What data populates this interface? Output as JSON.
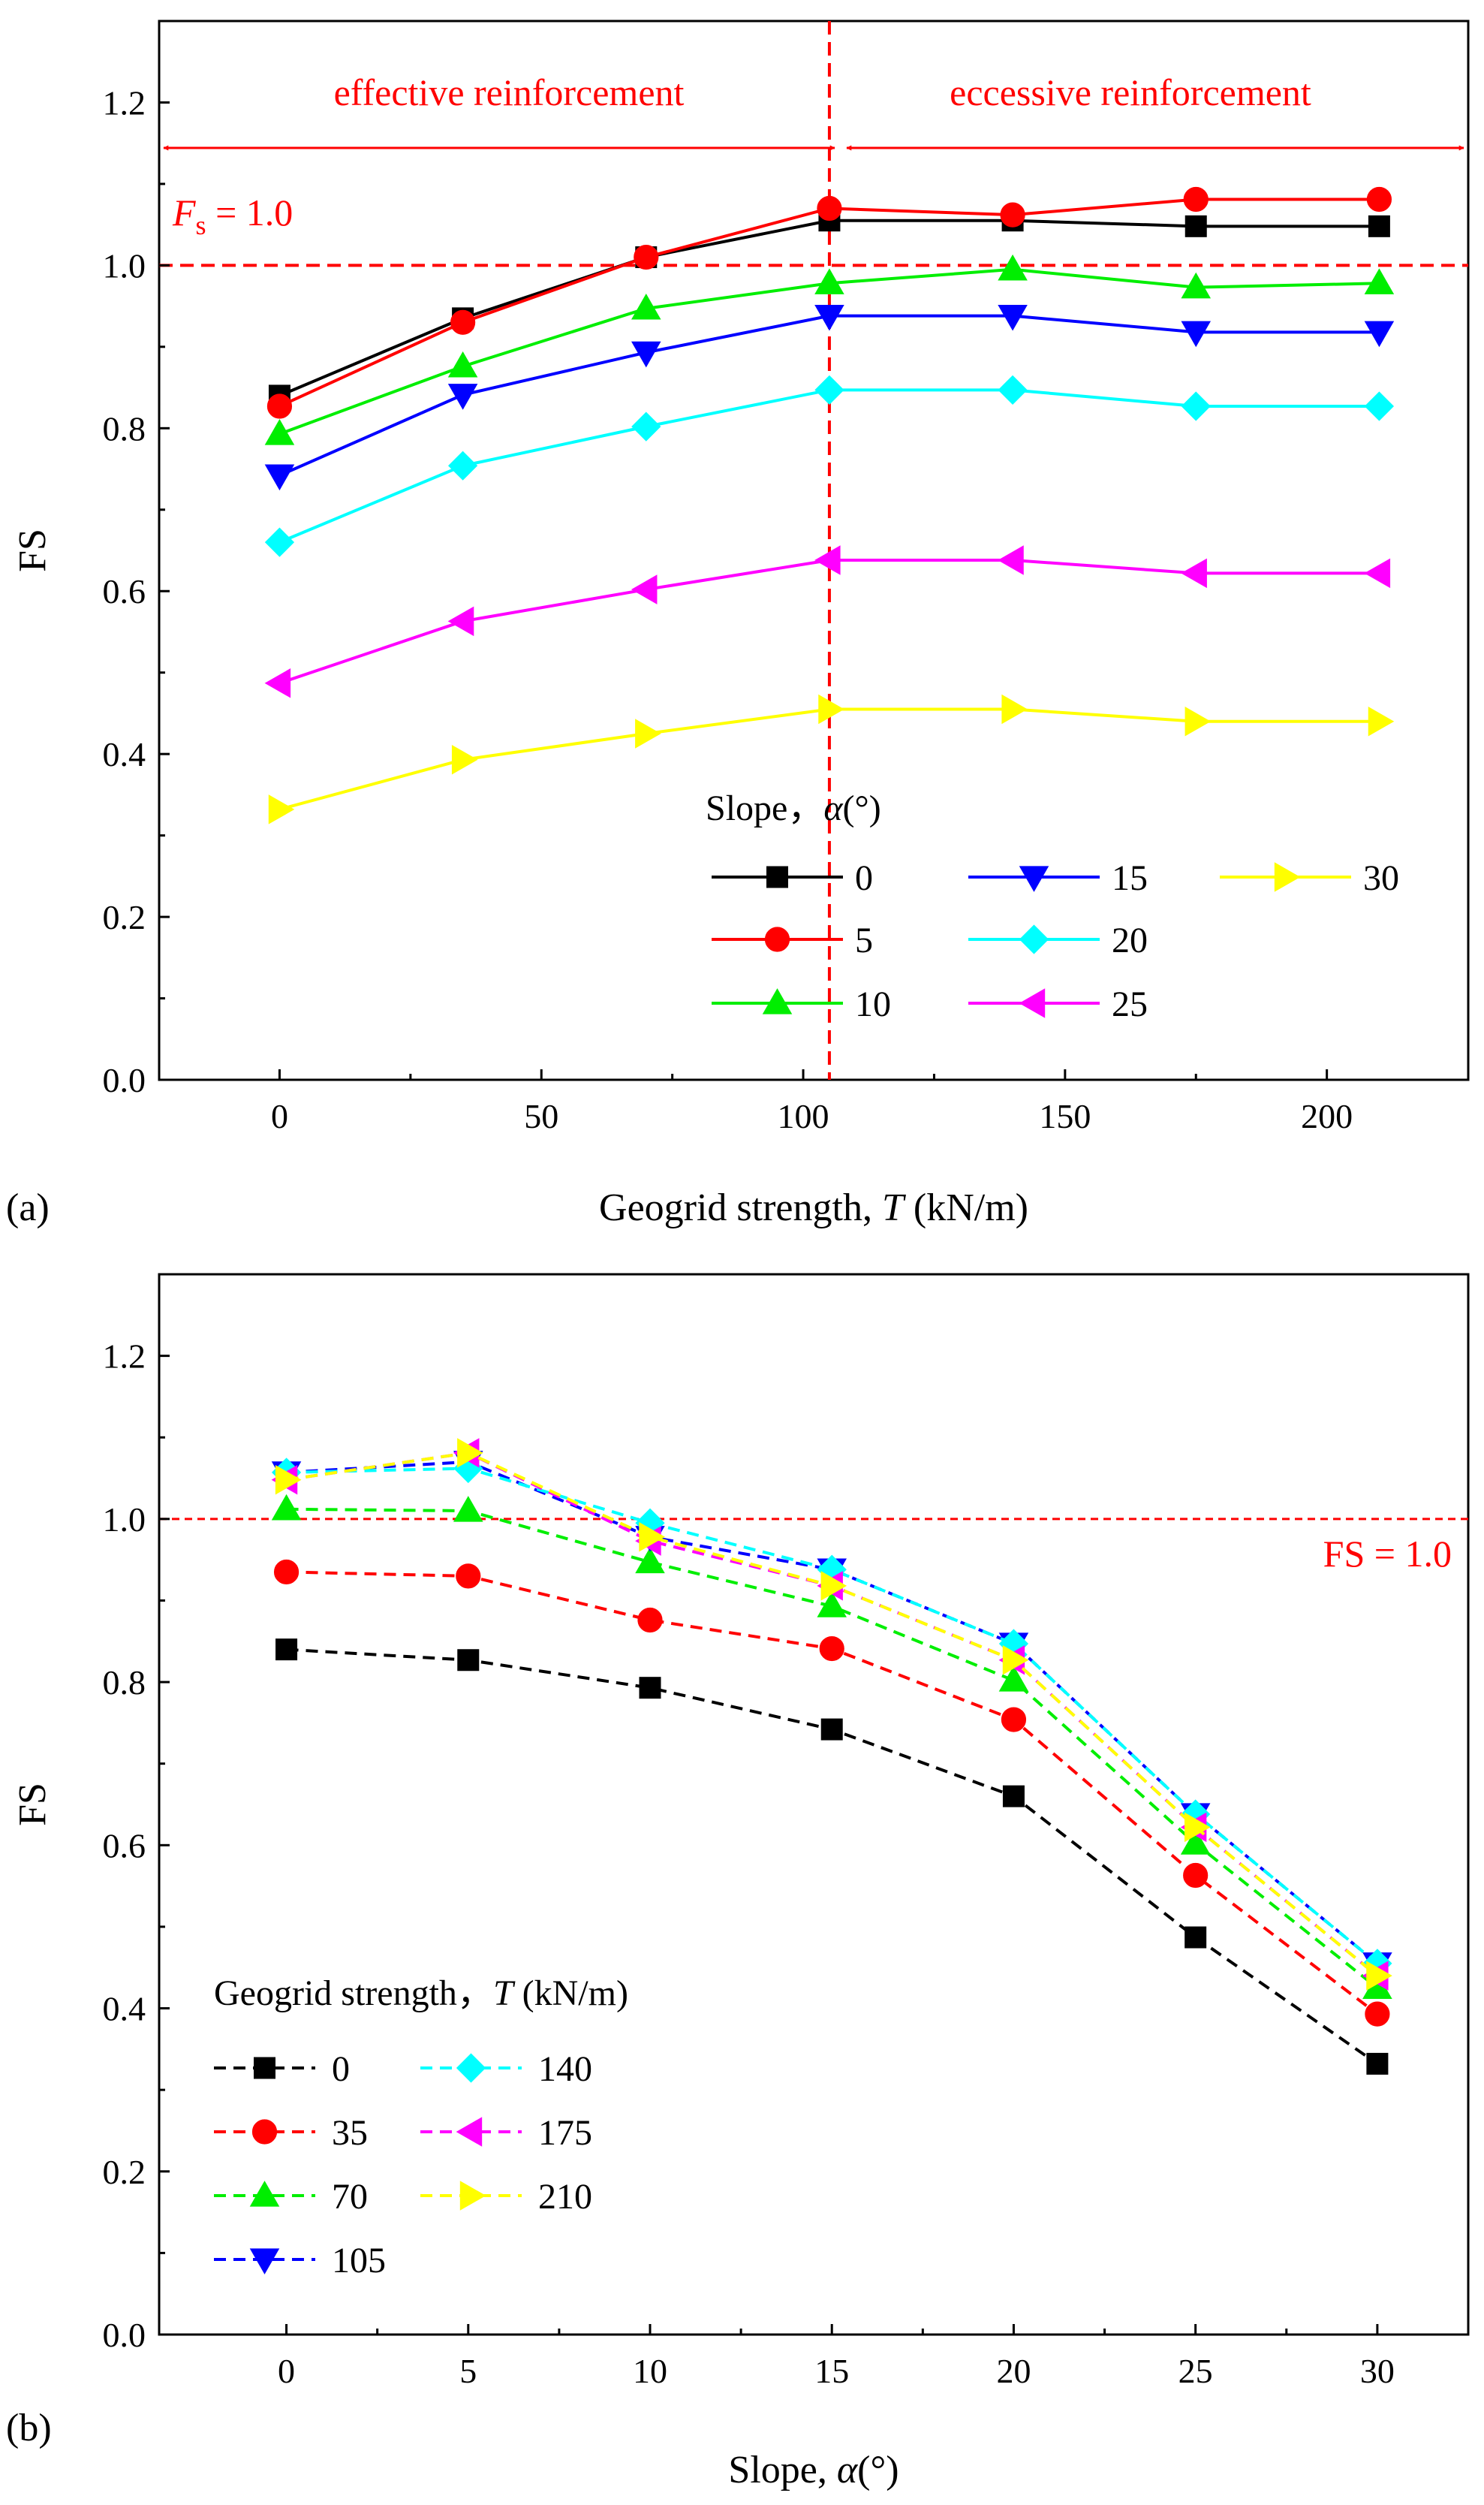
{
  "chart_data": [
    {
      "type": "line",
      "panel_label": "(a)",
      "title": "",
      "xlabel": "Geogrid strength, T (kN/m)",
      "xlabel_parts": [
        "Geogrid strength, ",
        "T",
        " (kN/m)"
      ],
      "ylabel": "FS",
      "xlim": [
        -23,
        227
      ],
      "ylim": [
        0.0,
        1.3
      ],
      "x_ticks": [
        0,
        50,
        100,
        150,
        200
      ],
      "y_ticks": [
        0.0,
        0.2,
        0.4,
        0.6,
        0.8,
        1.0,
        1.2
      ],
      "x_tick_labels": [
        "0",
        "50",
        "100",
        "150",
        "200"
      ],
      "y_tick_labels": [
        "0.0",
        "0.2",
        "0.4",
        "0.6",
        "0.8",
        "1.0",
        "1.2"
      ],
      "grid": false,
      "x": [
        0,
        35,
        70,
        105,
        140,
        175,
        210
      ],
      "legend_title": "Slope，α(°)",
      "legend_title_parts": [
        "Slope，",
        "α",
        "(°)"
      ],
      "legend_position": "bottom-right",
      "series": [
        {
          "name": "0",
          "color": "#000000",
          "marker": "square",
          "values": [
            0.84,
            0.935,
            1.01,
            1.055,
            1.055,
            1.048,
            1.048
          ]
        },
        {
          "name": "5",
          "color": "#ff0000",
          "marker": "circle",
          "values": [
            0.827,
            0.93,
            1.01,
            1.07,
            1.062,
            1.081,
            1.081
          ]
        },
        {
          "name": "10",
          "color": "#00ee00",
          "marker": "triangle-up",
          "values": [
            0.793,
            0.876,
            0.947,
            0.978,
            0.995,
            0.973,
            0.978
          ]
        },
        {
          "name": "15",
          "color": "#0000ff",
          "marker": "triangle-down",
          "values": [
            0.742,
            0.841,
            0.893,
            0.938,
            0.938,
            0.918,
            0.918
          ]
        },
        {
          "name": "20",
          "color": "#00ffff",
          "marker": "diamond",
          "values": [
            0.66,
            0.754,
            0.802,
            0.847,
            0.847,
            0.827,
            0.827
          ]
        },
        {
          "name": "25",
          "color": "#ff00ff",
          "marker": "triangle-left",
          "values": [
            0.487,
            0.563,
            0.602,
            0.638,
            0.638,
            0.622,
            0.622
          ]
        },
        {
          "name": "30",
          "color": "#ffff00",
          "marker": "triangle-right",
          "values": [
            0.332,
            0.393,
            0.425,
            0.455,
            0.455,
            0.44,
            0.44
          ]
        }
      ],
      "reference_lines": [
        {
          "orientation": "horizontal",
          "value": 1.0,
          "color": "#ff0000",
          "style": "dashed"
        },
        {
          "orientation": "vertical",
          "value": 105,
          "color": "#ff0000",
          "style": "dashed"
        }
      ],
      "annotations": {
        "fs_label_main": "F",
        "fs_label_sub": "s",
        "fs_label_rest": " = 1.0",
        "left_region": "effective reinforcement",
        "right_region": "eccessive reinforcement",
        "arrow_color": "#ff0000"
      }
    },
    {
      "type": "line",
      "panel_label": "(b)",
      "title": "",
      "xlabel": "Slope, α(°)",
      "xlabel_parts": [
        "Slope, ",
        "α",
        "(°)"
      ],
      "ylabel": "FS",
      "xlim": [
        -3.5,
        32.5
      ],
      "ylim": [
        0.0,
        1.3
      ],
      "x_ticks": [
        0,
        5,
        10,
        15,
        20,
        25,
        30
      ],
      "y_ticks": [
        0.0,
        0.2,
        0.4,
        0.6,
        0.8,
        1.0,
        1.2
      ],
      "x_tick_labels": [
        "0",
        "5",
        "10",
        "15",
        "20",
        "25",
        "30"
      ],
      "y_tick_labels": [
        "0.0",
        "0.2",
        "0.4",
        "0.6",
        "0.8",
        "1.0",
        "1.2"
      ],
      "grid": false,
      "x": [
        0,
        5,
        10,
        15,
        20,
        25,
        30
      ],
      "line_style": "dashed",
      "legend_title": "Geogrid strength，T (kN/m)",
      "legend_title_parts": [
        "Geogrid strength，",
        "T",
        " (kN/m)"
      ],
      "legend_position": "bottom-left",
      "series": [
        {
          "name": "0",
          "color": "#000000",
          "marker": "square",
          "values": [
            0.84,
            0.827,
            0.793,
            0.742,
            0.66,
            0.487,
            0.332
          ]
        },
        {
          "name": "35",
          "color": "#ff0000",
          "marker": "circle",
          "values": [
            0.935,
            0.93,
            0.876,
            0.841,
            0.754,
            0.563,
            0.393
          ]
        },
        {
          "name": "70",
          "color": "#00ee00",
          "marker": "triangle-up",
          "values": [
            1.012,
            1.01,
            0.947,
            0.893,
            0.802,
            0.602,
            0.425
          ]
        },
        {
          "name": "105",
          "color": "#0000ff",
          "marker": "triangle-down",
          "values": [
            1.057,
            1.07,
            0.978,
            0.938,
            0.847,
            0.638,
            0.455
          ]
        },
        {
          "name": "140",
          "color": "#00ffff",
          "marker": "diamond",
          "values": [
            1.057,
            1.062,
            0.995,
            0.938,
            0.847,
            0.638,
            0.455
          ]
        },
        {
          "name": "175",
          "color": "#ff00ff",
          "marker": "triangle-left",
          "values": [
            1.048,
            1.081,
            0.973,
            0.918,
            0.827,
            0.622,
            0.44
          ]
        },
        {
          "name": "210",
          "color": "#ffff00",
          "marker": "triangle-right",
          "values": [
            1.048,
            1.081,
            0.978,
            0.918,
            0.827,
            0.622,
            0.44
          ]
        }
      ],
      "reference_lines": [
        {
          "orientation": "horizontal",
          "value": 1.0,
          "color": "#ff0000",
          "style": "dashed"
        }
      ],
      "annotations": {
        "fs_label": "FS = 1.0"
      }
    }
  ]
}
